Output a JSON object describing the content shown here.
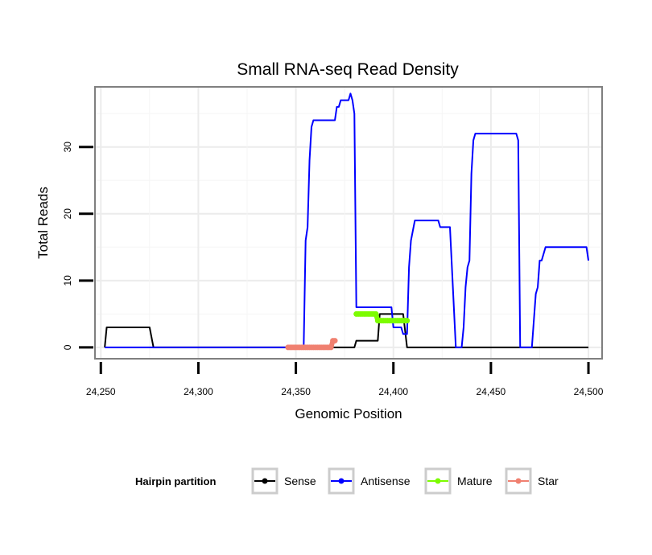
{
  "chart_data": {
    "type": "line",
    "title": "Small RNA-seq Read Density",
    "xlabel": "Genomic Position",
    "ylabel": "Total Reads",
    "xlim": [
      24247,
      24507
    ],
    "ylim": [
      -1.7,
      39
    ],
    "x_ticks": [
      24250,
      24300,
      24350,
      24400,
      24450,
      24500
    ],
    "x_tick_labels": [
      "24,250",
      "24,300",
      "24,350",
      "24,400",
      "24,450",
      "24,500"
    ],
    "y_ticks": [
      0,
      10,
      20,
      30
    ],
    "y_tick_labels": [
      "0",
      "10",
      "20",
      "30"
    ],
    "grid": true,
    "legend": {
      "title": "Hairpin partition",
      "placement": "bottom",
      "entries": [
        "Sense",
        "Antisense",
        "Mature",
        "Star"
      ]
    },
    "series": [
      {
        "name": "Sense",
        "color": "#000000",
        "width": 2,
        "markers": false,
        "x": [
          24252,
          24253,
          24275,
          24277,
          24380,
          24381,
          24392,
          24393,
          24405,
          24407,
          24500
        ],
        "y": [
          0,
          3,
          3,
          0,
          0,
          1,
          1,
          5,
          5,
          0,
          0
        ]
      },
      {
        "name": "Antisense",
        "color": "#0000ff",
        "width": 2,
        "markers": false,
        "x": [
          24252,
          24354,
          24355,
          24356,
          24357,
          24358,
          24359,
          24361,
          24370,
          24371,
          24372,
          24373,
          24376,
          24377,
          24378,
          24379,
          24380,
          24381,
          24382,
          24390,
          24399,
          24400,
          24404,
          24405,
          24407,
          24408,
          24409,
          24411,
          24414,
          24423,
          24424,
          24428,
          24429,
          24432,
          24433,
          24435,
          24436,
          24437,
          24438,
          24439,
          24440,
          24441,
          24442,
          24443,
          24451,
          24463,
          24464,
          24465,
          24471,
          24472,
          24473,
          24474,
          24475,
          24476,
          24477,
          24478,
          24480,
          24498,
          24499,
          24500
        ],
        "y": [
          0,
          0,
          16,
          18,
          28,
          33,
          34,
          34,
          34,
          36,
          36,
          37,
          37,
          37,
          38,
          37,
          35,
          6,
          6,
          6,
          6,
          3,
          3,
          2,
          2,
          12,
          16,
          19,
          19,
          19,
          18,
          18,
          18,
          0,
          0,
          0,
          3,
          9,
          12,
          13,
          26,
          31,
          32,
          32,
          32,
          32,
          31,
          0,
          0,
          4,
          8,
          9,
          13,
          13,
          14,
          15,
          15,
          15,
          15,
          13
        ]
      },
      {
        "name": "Mature",
        "color": "#7cfc00",
        "width": 6,
        "markers": true,
        "x": [
          24381,
          24382,
          24383,
          24384,
          24385,
          24386,
          24387,
          24388,
          24389,
          24390,
          24391,
          24392,
          24393,
          24394,
          24395,
          24396,
          24397,
          24398,
          24399,
          24400,
          24401,
          24402,
          24403,
          24404,
          24405,
          24406,
          24407
        ],
        "y": [
          5,
          5,
          5,
          5,
          5,
          5,
          5,
          5,
          5,
          5,
          5,
          4,
          4,
          4,
          4,
          4,
          4,
          4,
          4,
          4,
          4,
          4,
          4,
          4,
          4,
          4,
          4
        ]
      },
      {
        "name": "Star",
        "color": "#f08070",
        "width": 6,
        "markers": true,
        "x": [
          24346,
          24347,
          24348,
          24349,
          24350,
          24351,
          24352,
          24353,
          24354,
          24355,
          24356,
          24357,
          24358,
          24359,
          24360,
          24361,
          24362,
          24363,
          24364,
          24365,
          24366,
          24367,
          24368,
          24369,
          24370
        ],
        "y": [
          0,
          0,
          0,
          0,
          0,
          0,
          0,
          0,
          0,
          0,
          0,
          0,
          0,
          0,
          0,
          0,
          0,
          0,
          0,
          0,
          0,
          0,
          0,
          1,
          1
        ]
      }
    ]
  }
}
